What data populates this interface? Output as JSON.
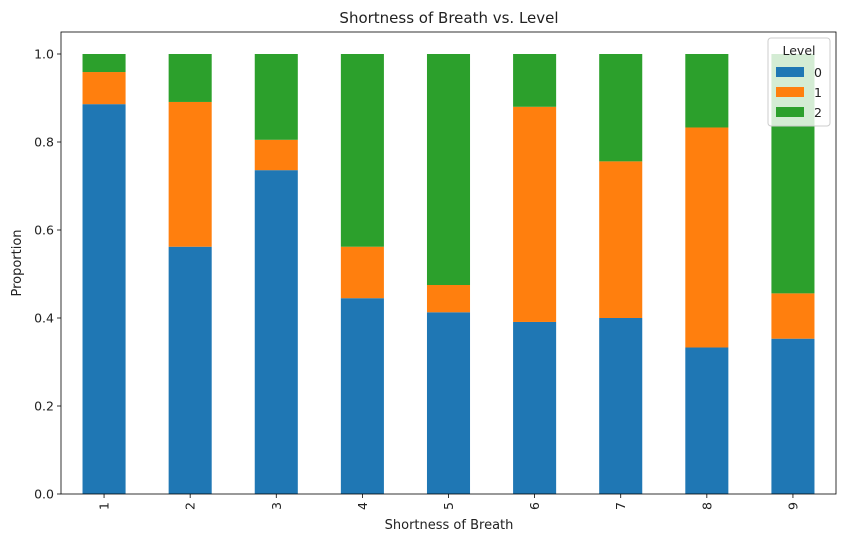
{
  "chart_data": {
    "type": "bar",
    "stacked": true,
    "title": "Shortness of Breath vs. Level",
    "xlabel": "Shortness of Breath",
    "ylabel": "Proportion",
    "ylim": [
      0,
      1.05
    ],
    "yticks": [
      0.0,
      0.2,
      0.4,
      0.6,
      0.8,
      1.0
    ],
    "ytick_labels": [
      "0.0",
      "0.2",
      "0.4",
      "0.6",
      "0.8",
      "1.0"
    ],
    "categories": [
      "1",
      "2",
      "3",
      "4",
      "5",
      "6",
      "7",
      "8",
      "9"
    ],
    "series": [
      {
        "name": "0",
        "color": "#1f77b4",
        "values": [
          0.886,
          0.562,
          0.736,
          0.445,
          0.413,
          0.391,
          0.4,
          0.333,
          0.353
        ]
      },
      {
        "name": "1",
        "color": "#ff7f0e",
        "values": [
          0.073,
          0.329,
          0.069,
          0.117,
          0.062,
          0.489,
          0.356,
          0.5,
          0.103
        ]
      },
      {
        "name": "2",
        "color": "#2ca02c",
        "values": [
          0.041,
          0.109,
          0.195,
          0.438,
          0.525,
          0.12,
          0.244,
          0.167,
          0.544
        ]
      }
    ],
    "legend": {
      "title": "Level",
      "placement": "top-right"
    },
    "grid": false
  }
}
